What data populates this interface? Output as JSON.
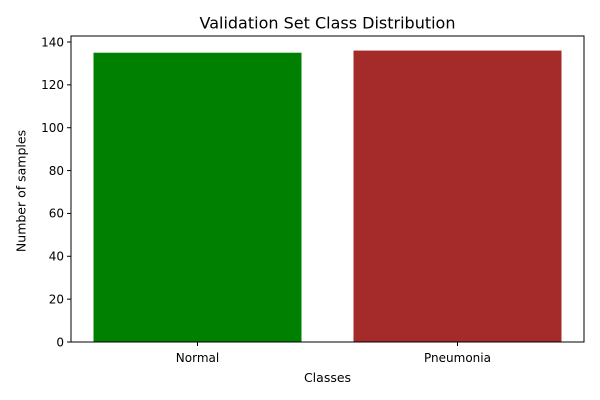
{
  "chart_data": {
    "type": "bar",
    "title": "Validation Set Class Distribution",
    "xlabel": "Classes",
    "ylabel": "Number of samples",
    "categories": [
      "Normal",
      "Pneumonia"
    ],
    "values": [
      135,
      136
    ],
    "colors": [
      "#008000",
      "#a52a2a"
    ],
    "ylim": [
      0,
      142.8
    ],
    "yticks": [
      0,
      20,
      40,
      60,
      80,
      100,
      120,
      140
    ],
    "grid": false,
    "legend": "none"
  }
}
